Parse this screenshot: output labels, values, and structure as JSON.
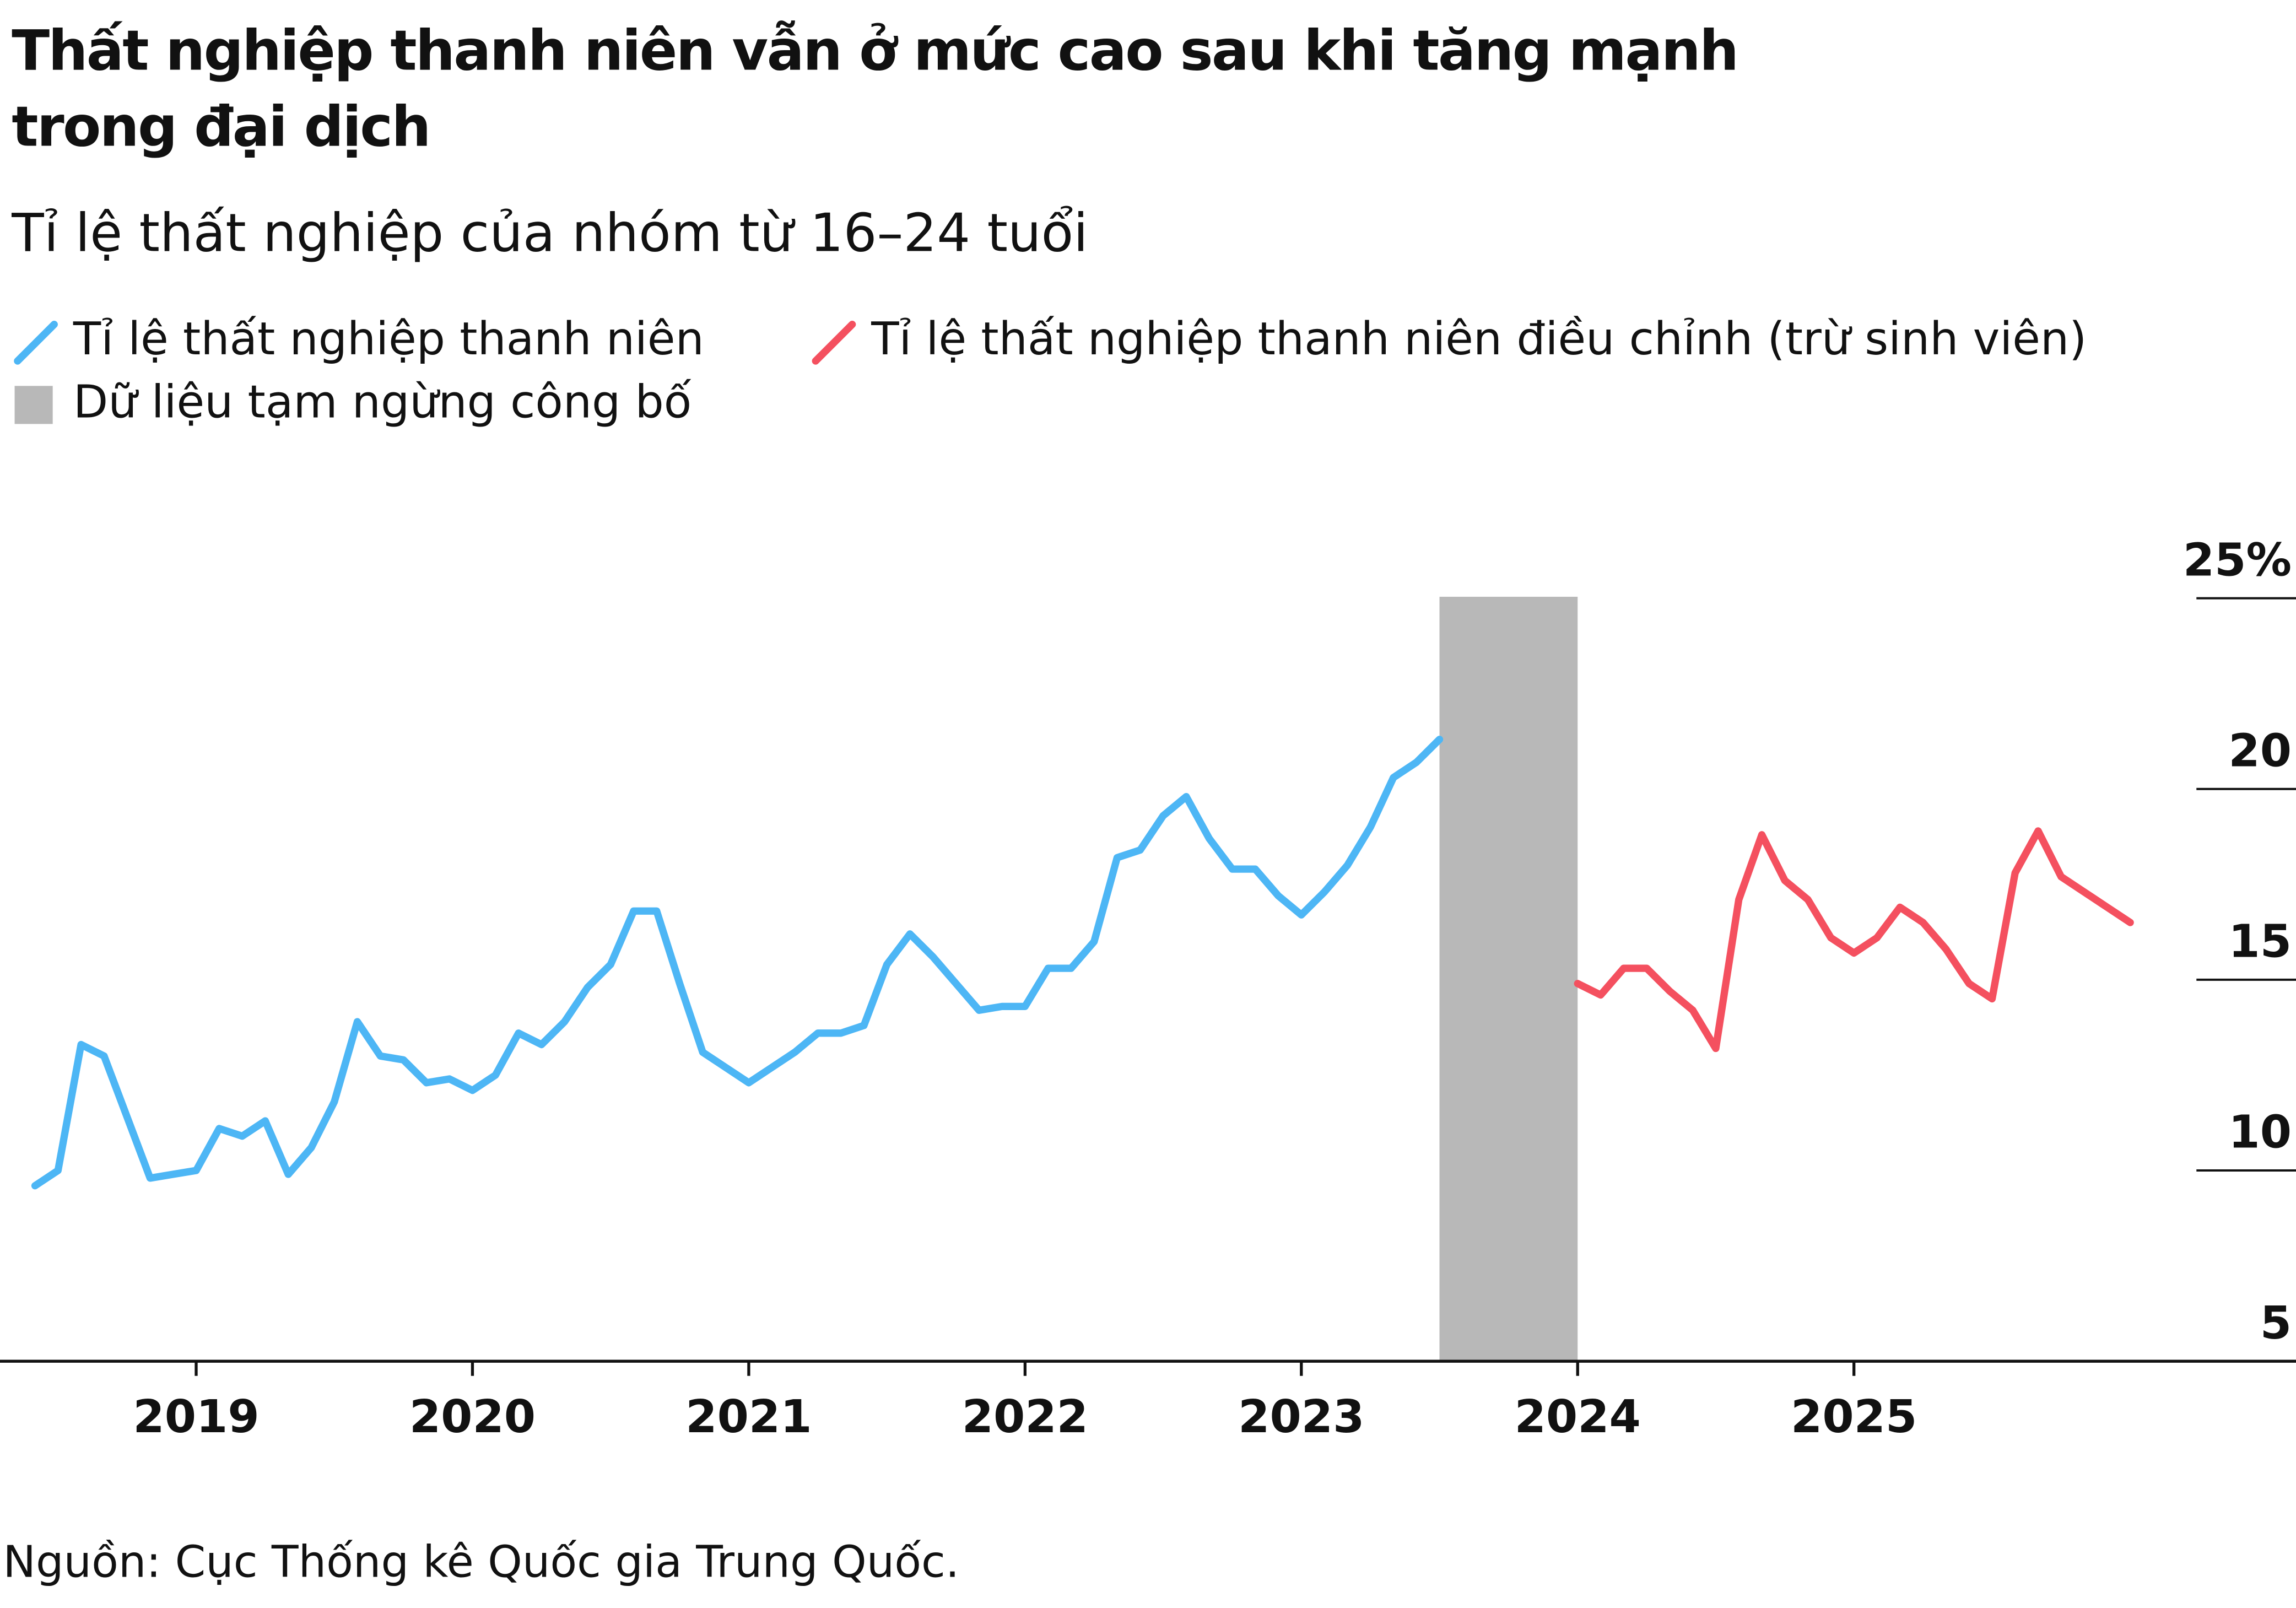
{
  "chart_data": {
    "type": "line",
    "title": "Thất nghiệp thanh niên vẫn ở mức cao sau khi tăng mạnh trong đại dịch",
    "subtitle": "Tỉ lệ thất nghiệp của nhóm từ 16–24 tuổi",
    "source": "Nguồn: Cục Thống kê Quốc gia Trung Quốc.",
    "series": [
      {
        "name": "Tỉ lệ thất nghiệp thanh niên",
        "color": "#4db6f5",
        "x": [
          "2018-05",
          "2018-06",
          "2018-07",
          "2018-08",
          "2018-09",
          "2018-10",
          "2018-11",
          "2018-12",
          "2019-01",
          "2019-02",
          "2019-03",
          "2019-04",
          "2019-05",
          "2019-06",
          "2019-07",
          "2019-08",
          "2019-09",
          "2019-10",
          "2019-11",
          "2019-12",
          "2020-01",
          "2020-02",
          "2020-03",
          "2020-04",
          "2020-05",
          "2020-06",
          "2020-07",
          "2020-08",
          "2020-09",
          "2020-10",
          "2020-11",
          "2020-12",
          "2021-01",
          "2021-02",
          "2021-03",
          "2021-04",
          "2021-05",
          "2021-06",
          "2021-07",
          "2021-08",
          "2021-09",
          "2021-10",
          "2021-11",
          "2021-12",
          "2022-01",
          "2022-02",
          "2022-03",
          "2022-04",
          "2022-05",
          "2022-06",
          "2022-07",
          "2022-08",
          "2022-09",
          "2022-10",
          "2022-11",
          "2022-12",
          "2023-01",
          "2023-02",
          "2023-03",
          "2023-04",
          "2023-05",
          "2023-06"
        ],
        "values": [
          9.6,
          10.0,
          13.3,
          13.0,
          11.4,
          9.8,
          9.9,
          10.0,
          11.1,
          10.9,
          11.3,
          9.9,
          10.6,
          11.8,
          13.9,
          13.0,
          12.9,
          12.3,
          12.4,
          12.1,
          12.5,
          13.6,
          13.3,
          13.9,
          14.8,
          15.4,
          16.8,
          16.8,
          14.9,
          13.1,
          12.7,
          12.3,
          12.7,
          13.1,
          13.6,
          13.6,
          13.8,
          15.4,
          16.2,
          15.6,
          14.9,
          14.2,
          14.3,
          14.3,
          15.3,
          15.3,
          16.0,
          18.2,
          18.4,
          19.3,
          19.8,
          18.7,
          17.9,
          17.9,
          17.2,
          16.7,
          17.3,
          18.0,
          19.0,
          20.3,
          20.7,
          21.3
        ]
      },
      {
        "name": "Tỉ lệ thất nghiệp thanh niên điều chỉnh (trừ sinh viên)",
        "color": "#f4505f",
        "x": [
          "2023-12",
          "2024-01",
          "2024-02",
          "2024-03",
          "2024-04",
          "2024-05",
          "2024-06",
          "2024-07",
          "2024-08",
          "2024-09",
          "2024-10",
          "2024-11",
          "2024-12",
          "2025-01",
          "2025-02",
          "2025-03",
          "2025-04",
          "2025-05",
          "2025-06",
          "2025-07",
          "2025-08",
          "2025-09",
          "2025-10",
          "2025-11",
          "2025-12"
        ],
        "values": [
          14.9,
          14.6,
          15.3,
          15.3,
          14.7,
          14.2,
          13.2,
          17.1,
          18.8,
          17.6,
          17.1,
          16.1,
          15.7,
          16.1,
          16.9,
          16.5,
          15.8,
          14.9,
          14.5,
          17.8,
          18.9,
          17.7,
          17.3,
          16.9,
          16.5
        ]
      }
    ],
    "shaded": {
      "name": "Dữ liệu tạm ngừng công bố",
      "color": "#b8b8b8",
      "x": [
        "2023-06",
        "2023-12"
      ]
    },
    "xlim": [
      2018.29,
      2026.6
    ],
    "xticks": [
      2019,
      2020,
      2021,
      2022,
      2023,
      2024,
      2025
    ],
    "ylim": [
      5,
      25
    ],
    "yticks": [
      5,
      10,
      15,
      20,
      {
        "value": 25,
        "label": "25%"
      }
    ],
    "y_axis_side": "right"
  }
}
